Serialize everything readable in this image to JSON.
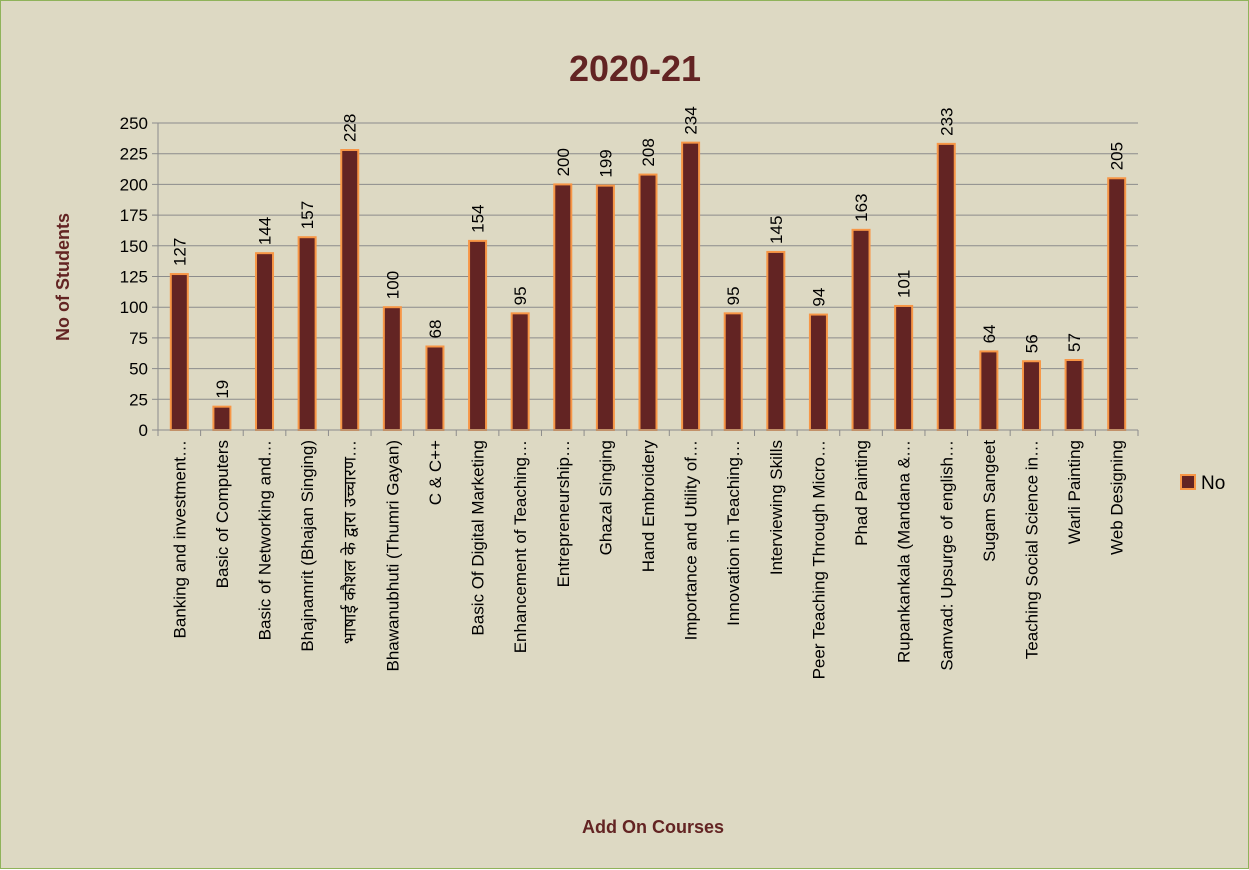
{
  "chart_data": {
    "type": "bar",
    "title": "2020-21",
    "xlabel": "Add On Courses",
    "ylabel": "No of Students",
    "ylim": [
      0,
      250
    ],
    "yticks": [
      0,
      25,
      50,
      75,
      100,
      125,
      150,
      175,
      200,
      225,
      250
    ],
    "grid": true,
    "legend_position": "right",
    "categories": [
      "Banking and investment…",
      "Basic of Computers",
      "Basic of Networking and…",
      "Bhajnamrit (Bhajan Singing)",
      "भाषाई कौशल के द्वारा उच्चारण…",
      "Bhawanubhuti (Thumri Gayan)",
      "C & C++",
      "Basic Of Digital Marketing",
      "Enhancement of Teaching…",
      "Entrepreneurship…",
      "Ghazal Singing",
      "Hand Embroidery",
      "Importance and Utility of…",
      "Innovation in Teaching…",
      "Interviewing Skills",
      "Peer Teaching Through Micro…",
      "Phad Painting",
      "Rupankankala (Mandana &…",
      "Samvad: Upsurge of english…",
      "Sugam Sangeet",
      "Teaching Social Science in…",
      "Warli Painting",
      "Web Designing"
    ],
    "series": [
      {
        "name": "No",
        "color": "#632423",
        "edge_color": "#f79646",
        "values": [
          127,
          19,
          144,
          157,
          228,
          100,
          68,
          154,
          95,
          200,
          199,
          208,
          234,
          95,
          145,
          94,
          163,
          101,
          233,
          64,
          56,
          57,
          205
        ]
      }
    ]
  }
}
